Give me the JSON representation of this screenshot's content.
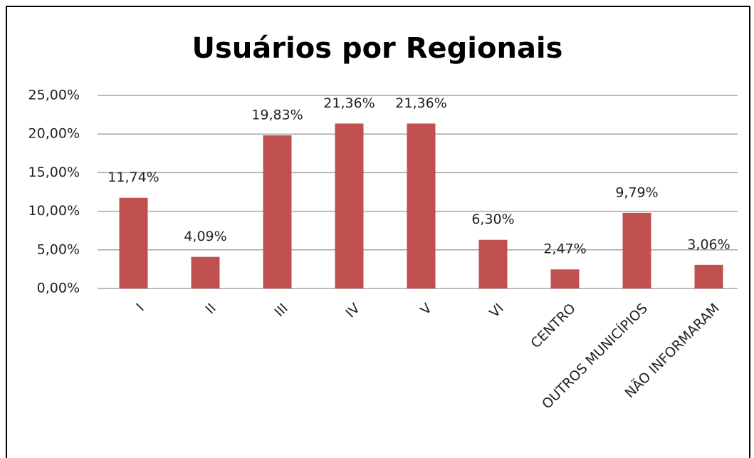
{
  "chart_data": {
    "type": "bar",
    "title": "Usuários por Regionais",
    "categories": [
      "I",
      "II",
      "III",
      "IV",
      "V",
      "VI",
      "CENTRO",
      "OUTROS MUNICÍPIOS",
      "NÃO INFORMARAM"
    ],
    "values": [
      11.74,
      4.09,
      19.83,
      21.36,
      21.36,
      6.3,
      2.47,
      9.79,
      3.06
    ],
    "value_labels": [
      "11,74%",
      "4,09%",
      "19,83%",
      "21,36%",
      "21,36%",
      "6,30%",
      "2,47%",
      "9,79%",
      "3,06%"
    ],
    "color": "#c0504d",
    "ylim": [
      0,
      25
    ],
    "yticks": [
      {
        "value": 0,
        "label": "0,00%"
      },
      {
        "value": 5,
        "label": "5,00%"
      },
      {
        "value": 10,
        "label": "10,00%"
      },
      {
        "value": 15,
        "label": "15,00%"
      },
      {
        "value": 20,
        "label": "20,00%"
      },
      {
        "value": 25,
        "label": "25,00%"
      }
    ],
    "grid": true
  }
}
